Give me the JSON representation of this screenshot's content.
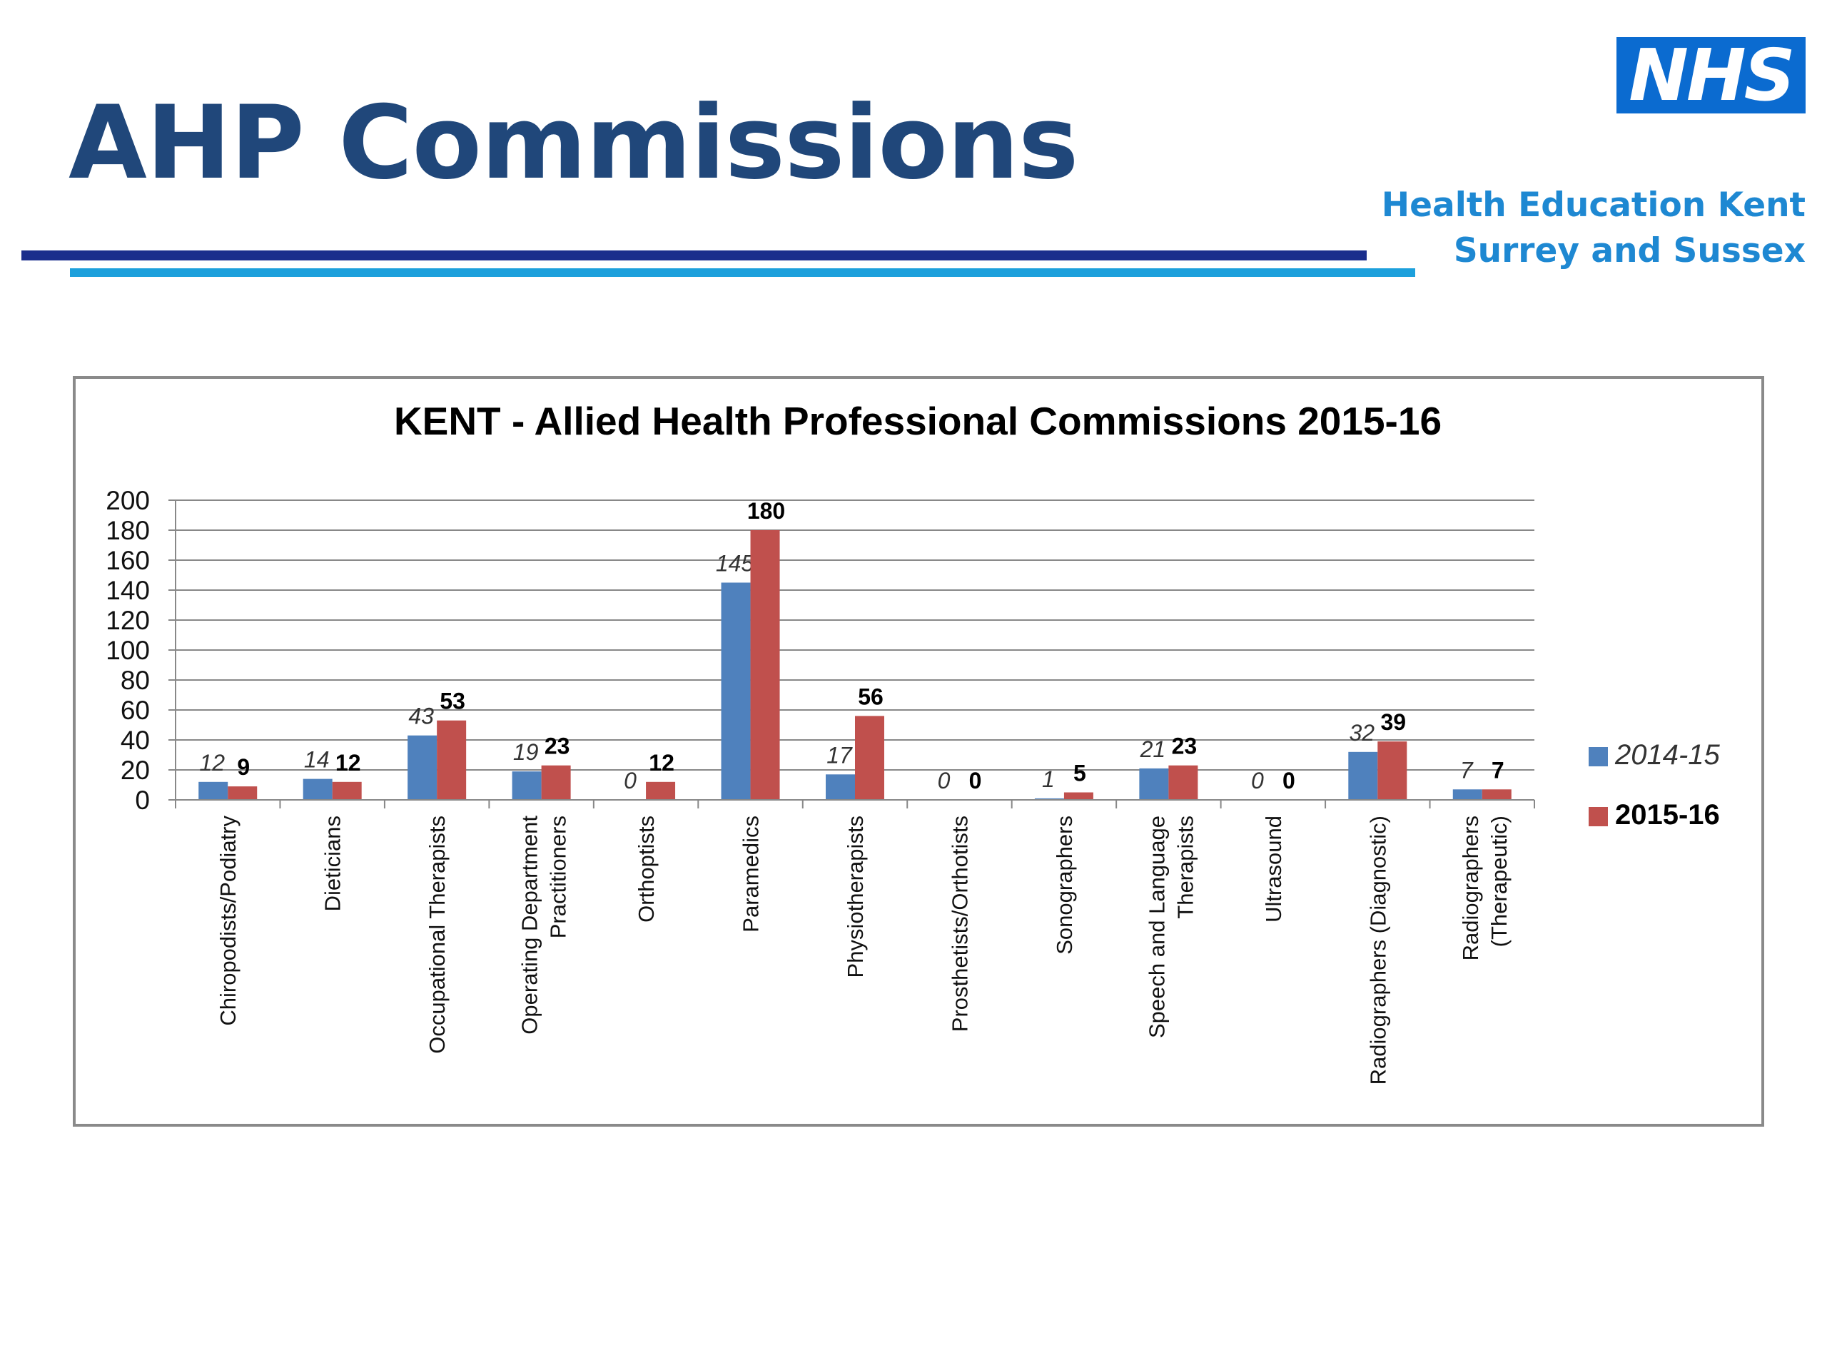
{
  "slide": {
    "title": "AHP Commissions",
    "logo_text": "NHS",
    "org_line1": "Health Education Kent",
    "org_line2": "Surrey and Sussex"
  },
  "colors": {
    "title": "#20477a",
    "nhs_blue": "#0b6bd0",
    "org_text": "#1e88d2",
    "rule_dark": "#1a2e8c",
    "rule_light": "#1da0dc",
    "series_2014": "#4f81bd",
    "series_2015": "#c0504d",
    "gridline": "#888888"
  },
  "chart_data": {
    "type": "bar",
    "title": "KENT - Allied Health Professional Commissions 2015-16",
    "xlabel": "",
    "ylabel": "",
    "ylim": [
      0,
      200
    ],
    "yticks": [
      0,
      20,
      40,
      60,
      80,
      100,
      120,
      140,
      160,
      180,
      200
    ],
    "grid": true,
    "legend_position": "right",
    "categories": [
      "Chiropodists/Podiatry",
      "Dieticians",
      "Occupational Therapists",
      "Operating Department Practitioners",
      "Orthoptists",
      "Paramedics",
      "Physiotherapists",
      "Prosthetists/Orthotists",
      "Sonographers",
      "Speech and Language Therapists",
      "Ultrasound",
      "Radiographers (Diagnostic)",
      "Radiographers (Therapeutic)"
    ],
    "category_lines": [
      [
        "Chiropodists/Podiatry"
      ],
      [
        "Dieticians"
      ],
      [
        "Occupational Therapists"
      ],
      [
        "Operating Department",
        "Practitioners"
      ],
      [
        "Orthoptists"
      ],
      [
        "Paramedics"
      ],
      [
        "Physiotherapists"
      ],
      [
        "Prosthetists/Orthotists"
      ],
      [
        "Sonographers"
      ],
      [
        "Speech and Language",
        "Therapists"
      ],
      [
        "Ultrasound"
      ],
      [
        "Radiographers (Diagnostic)"
      ],
      [
        "Radiographers",
        "(Therapeutic)"
      ]
    ],
    "series": [
      {
        "name": "2014-15",
        "values": [
          12,
          14,
          43,
          19,
          0,
          145,
          17,
          0,
          1,
          21,
          0,
          32,
          7
        ]
      },
      {
        "name": "2015-16",
        "values": [
          9,
          12,
          53,
          23,
          12,
          180,
          56,
          0,
          5,
          23,
          0,
          39,
          7
        ]
      }
    ]
  }
}
